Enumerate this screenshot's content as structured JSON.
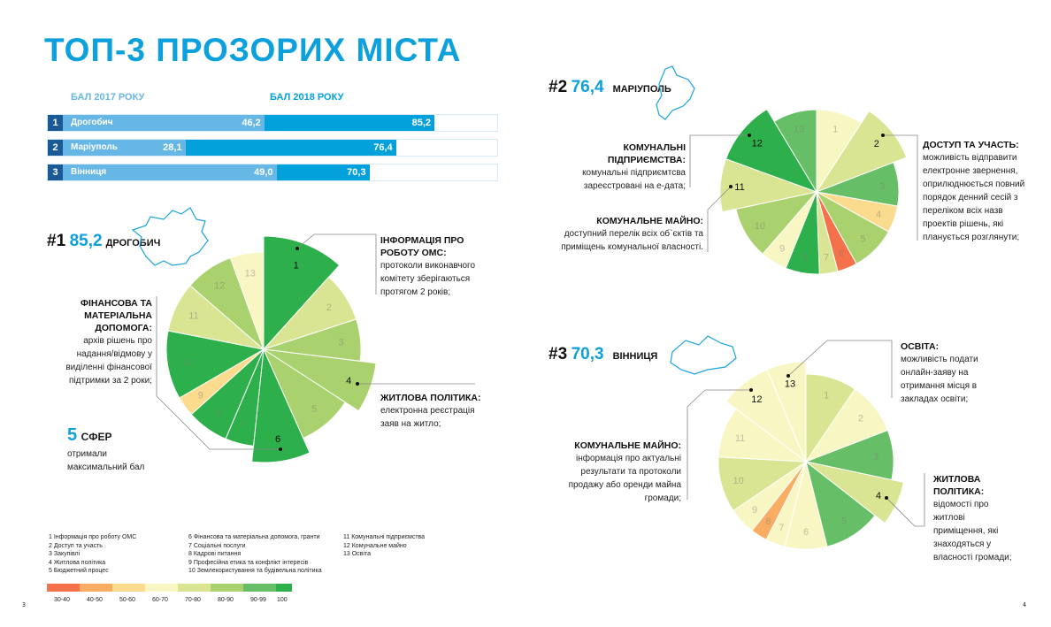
{
  "title": "ТОП-3 ПРОЗОРИХ МІСТА",
  "ranking": {
    "header_2017": "БАЛ 2017 РОКУ",
    "header_2018": "БАЛ 2018 РОКУ",
    "scale_max": 100,
    "rows": [
      {
        "rank": "1",
        "city": "Дрогобич",
        "score_2017": 46.2,
        "score_2017_label": "46,2",
        "score_2018": 85.2,
        "score_2018_label": "85,2"
      },
      {
        "rank": "2",
        "city": "Маріуполь",
        "score_2017": 28.1,
        "score_2017_label": "28,1",
        "score_2018": 76.4,
        "score_2018_label": "76,4"
      },
      {
        "rank": "3",
        "city": "Вінниця",
        "score_2017": 49.0,
        "score_2017_label": "49,0",
        "score_2018": 70.3,
        "score_2018_label": "70,3"
      }
    ]
  },
  "colors": {
    "accent": "#0ca0dc",
    "bar_2017": "#66b6e6",
    "bar_2018": "#03a1dc",
    "rank_box": "#1a5a96"
  },
  "chart_data": [
    {
      "type": "polar-area",
      "city": "Дрогобич",
      "rank": "#1",
      "score": "85,2",
      "segments": [
        {
          "n": 1,
          "band": "100",
          "highlighted": true
        },
        {
          "n": 2,
          "band": "70-80"
        },
        {
          "n": 3,
          "band": "80-90"
        },
        {
          "n": 4,
          "band": "80-90",
          "highlighted": true
        },
        {
          "n": 5,
          "band": "80-90"
        },
        {
          "n": 6,
          "band": "100",
          "highlighted": true
        },
        {
          "n": 7,
          "band": "100"
        },
        {
          "n": 8,
          "band": "100"
        },
        {
          "n": 9,
          "band": "50-60"
        },
        {
          "n": 10,
          "band": "100"
        },
        {
          "n": 11,
          "band": "70-80"
        },
        {
          "n": 12,
          "band": "80-90"
        },
        {
          "n": 13,
          "band": "60-70"
        }
      ]
    },
    {
      "type": "polar-area",
      "city": "Маріуполь",
      "rank": "#2",
      "score": "76,4",
      "segments": [
        {
          "n": 1,
          "band": "60-70"
        },
        {
          "n": 2,
          "band": "70-80",
          "highlighted": true
        },
        {
          "n": 3,
          "band": "90-99"
        },
        {
          "n": 4,
          "band": "50-60"
        },
        {
          "n": 5,
          "band": "80-90"
        },
        {
          "n": 6,
          "band": "30-40"
        },
        {
          "n": 7,
          "band": "70-80"
        },
        {
          "n": 8,
          "band": "100"
        },
        {
          "n": 9,
          "band": "60-70"
        },
        {
          "n": 10,
          "band": "80-90"
        },
        {
          "n": 11,
          "band": "70-80",
          "highlighted": true
        },
        {
          "n": 12,
          "band": "100",
          "highlighted": true
        },
        {
          "n": 13,
          "band": "90-99"
        }
      ]
    },
    {
      "type": "polar-area",
      "city": "Вінниця",
      "rank": "#3",
      "score": "70,3",
      "segments": [
        {
          "n": 1,
          "band": "70-80"
        },
        {
          "n": 2,
          "band": "60-70"
        },
        {
          "n": 3,
          "band": "90-99"
        },
        {
          "n": 4,
          "band": "70-80",
          "highlighted": true
        },
        {
          "n": 5,
          "band": "90-99"
        },
        {
          "n": 6,
          "band": "60-70"
        },
        {
          "n": 7,
          "band": "60-70"
        },
        {
          "n": 8,
          "band": "40-50"
        },
        {
          "n": 9,
          "band": "60-70"
        },
        {
          "n": 10,
          "band": "70-80"
        },
        {
          "n": 11,
          "band": "60-70"
        },
        {
          "n": 12,
          "band": "60-70",
          "highlighted": true
        },
        {
          "n": 13,
          "band": "60-70",
          "highlighted": true
        }
      ]
    }
  ],
  "notes": {
    "drohobych": [
      {
        "head": "ІНФОРМАЦІЯ ПРО РОБОТУ ОМС:",
        "text": "протоколи виконавчого комітету зберігаються протягом 2 років;"
      },
      {
        "head": "ЖИТЛОВА ПОЛІТИКА:",
        "text": "електронна реєстрація заяв на житло;"
      },
      {
        "head": "ФІНАНСОВА ТА МАТЕРІАЛЬНА ДОПОМОГА:",
        "text": "архів рішень про надання/відмову у виділенні фінансової підтримки за 2 роки;"
      }
    ],
    "five": {
      "num": "5",
      "head": "СФЕР",
      "text": "отримали максимальний бал"
    },
    "mariupol": [
      {
        "head": "КОМУНАЛЬНІ ПІДПРИЄМСТВА:",
        "text": "комунальні підприємтсва зареєстровані на е-дата;"
      },
      {
        "head": "КОМУНАЛЬНЕ МАЙНО:",
        "text": "доступний перелік всіх об`єктів та приміщень комунальної власності."
      },
      {
        "head": "ДОСТУП ТА УЧАСТЬ:",
        "text": "можливість відправити електронне звернення, оприлюднюється повний порядок денний сесій з переліком всіх назв проектів рішень, які планується розглянути;"
      }
    ],
    "vinnytsia": [
      {
        "head": "ОСВІТА:",
        "text": "можливість подати онлайн-заяву на отримання місця в закладах освіти;"
      },
      {
        "head": "КОМУНАЛЬНЕ МАЙНО:",
        "text": "інформація про актуальні результати та протоколи продажу або оренди майна громади;"
      },
      {
        "head": "ЖИТЛОВА ПОЛІТИКА:",
        "text": "відомості про житлові приміщення, які знаходяться у власності громади;"
      }
    ]
  },
  "legend": {
    "categories": [
      "1  Інформація про роботу ОМС",
      "2  Доступ та участь",
      "3  Закупівлі",
      "4  Житлова політика",
      "5  Бюджетний процес",
      "6  Фінансова та матеріальна допомога, гранти",
      "7  Соціальні послуги",
      "8  Кадрові питання",
      "9  Професійна етика та конфлікт інтересів",
      "10  Землекористування та будівельна політика",
      "11  Комунальні підприємства",
      "12  Комунальне майно",
      "13  Освіта"
    ],
    "bands": [
      {
        "label": "30-40",
        "color": "#f4714a"
      },
      {
        "label": "40-50",
        "color": "#f9ad63"
      },
      {
        "label": "50-60",
        "color": "#fbdc8e"
      },
      {
        "label": "60-70",
        "color": "#f8f6c3"
      },
      {
        "label": "70-80",
        "color": "#d9e593"
      },
      {
        "label": "80-90",
        "color": "#a9d26e"
      },
      {
        "label": "90-99",
        "color": "#66bf66"
      },
      {
        "label": "100",
        "color": "#2db04b"
      }
    ]
  },
  "pages": {
    "left": "3",
    "right": "4"
  }
}
